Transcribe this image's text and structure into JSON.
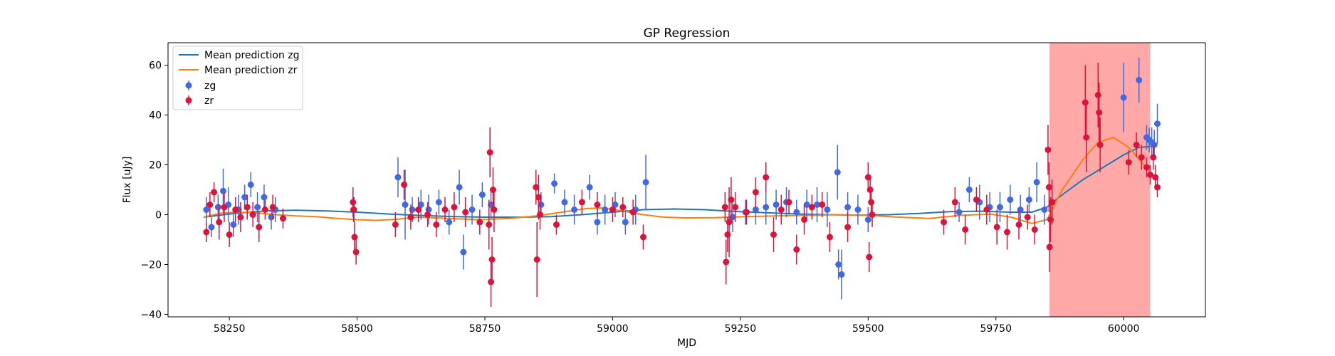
{
  "chart_data": {
    "type": "scatter",
    "title": "GP Regression",
    "xlabel": "MJD",
    "ylabel": "Flux [uJy]",
    "xlim": [
      58130,
      60160
    ],
    "ylim": [
      -41,
      69
    ],
    "xticks": [
      58250,
      58500,
      58750,
      59000,
      59250,
      59500,
      59750,
      60000
    ],
    "yticks": [
      -40,
      -20,
      0,
      20,
      40,
      60
    ],
    "grid": false,
    "legend_position": "top-left",
    "highlight_region": {
      "x_start": 59855,
      "x_end": 60052,
      "color": "#ffa8a8"
    },
    "series": [
      {
        "name": "Mean prediction zg",
        "kind": "line",
        "color": "#1f77b4",
        "x": [
          58200,
          58260,
          58320,
          58380,
          58440,
          58500,
          58560,
          58620,
          58680,
          58750,
          58820,
          58880,
          58940,
          59000,
          59060,
          59120,
          59180,
          59240,
          59300,
          59360,
          59420,
          59480,
          59540,
          59600,
          59660,
          59720,
          59780,
          59820,
          59850,
          59880,
          59920,
          59960,
          60000,
          60030,
          60060
        ],
        "y": [
          -1.0,
          0.5,
          1.5,
          1.8,
          1.5,
          1.0,
          0.3,
          -0.3,
          -0.7,
          -1.0,
          -1.0,
          -0.8,
          0.0,
          1.0,
          2.0,
          2.3,
          2.0,
          1.3,
          0.8,
          0.3,
          0.0,
          -0.2,
          0.0,
          0.5,
          1.2,
          1.4,
          1.0,
          1.0,
          3.0,
          8.0,
          14.0,
          19.0,
          24.0,
          27.0,
          27.5
        ]
      },
      {
        "name": "Mean prediction zr",
        "kind": "line",
        "color": "#ff7f0e",
        "x": [
          58200,
          58230,
          58260,
          58300,
          58340,
          58380,
          58420,
          58460,
          58500,
          58540,
          58580,
          58620,
          58680,
          58740,
          58800,
          58850,
          58900,
          58950,
          58980,
          59020,
          59060,
          59100,
          59140,
          59200,
          59260,
          59320,
          59380,
          59440,
          59500,
          59560,
          59620,
          59680,
          59740,
          59780,
          59820,
          59850,
          59880,
          59920,
          59950,
          59980,
          60010,
          60040,
          60060
        ],
        "y": [
          -1.0,
          0.5,
          1.0,
          0.8,
          0.0,
          -0.5,
          -0.8,
          -1.5,
          -2.0,
          -2.3,
          -1.8,
          -1.0,
          -1.5,
          -2.0,
          -1.5,
          -0.5,
          1.0,
          2.5,
          2.7,
          1.5,
          0.0,
          -1.0,
          -1.3,
          -1.2,
          -0.8,
          -0.5,
          -0.3,
          0.0,
          -0.3,
          -1.0,
          -1.5,
          -0.3,
          0.2,
          -1.0,
          -3.5,
          -2.0,
          10.0,
          22.0,
          29.0,
          31.0,
          27.0,
          20.0,
          15.0
        ]
      },
      {
        "name": "zg",
        "kind": "errorbar",
        "color": "#4169e1",
        "x": [
          58205,
          58215,
          58228,
          58238,
          58248,
          58258,
          58268,
          58280,
          58292,
          58305,
          58318,
          58332,
          58340,
          58494,
          58580,
          58594,
          58608,
          58625,
          58640,
          58660,
          58680,
          58700,
          58708,
          58725,
          58745,
          58762,
          58860,
          58886,
          58906,
          58925,
          58955,
          58970,
          58985,
          59005,
          59025,
          59045,
          59065,
          59235,
          59260,
          59280,
          59300,
          59320,
          59340,
          59360,
          59380,
          59400,
          59420,
          59440,
          59442,
          59448,
          59460,
          59480,
          59500,
          59678,
          59698,
          59718,
          59738,
          59758,
          59778,
          59798,
          59815,
          59830,
          59845,
          60000,
          60030,
          60045,
          60050,
          60055,
          60060,
          60066
        ],
        "y": [
          2,
          -5,
          3,
          9.5,
          4,
          -4,
          2,
          7,
          12,
          3,
          7,
          -1,
          2,
          2,
          15,
          4,
          2,
          4,
          2,
          5,
          -3,
          11,
          -15,
          2,
          8,
          4,
          4,
          12.5,
          5,
          2,
          11,
          -3,
          2,
          4,
          -3,
          2,
          13,
          -1,
          1,
          2,
          3,
          4,
          5,
          1,
          4,
          4,
          2,
          17,
          -20,
          -24,
          3,
          2,
          -2,
          1,
          10,
          5,
          3,
          3,
          6,
          2,
          6,
          13,
          2,
          47,
          54,
          31,
          30,
          29,
          28,
          36.5
        ],
        "err": [
          5,
          4,
          5,
          9,
          7,
          5,
          6,
          5,
          5,
          6,
          5,
          5,
          5,
          5,
          8,
          14,
          5,
          6,
          6,
          5,
          5,
          7,
          7,
          6,
          5,
          6,
          5,
          4,
          5,
          6,
          5,
          5,
          6,
          5,
          5,
          6,
          11,
          6,
          5,
          6,
          7,
          6,
          6,
          5,
          6,
          7,
          7,
          11,
          6,
          10,
          6,
          6,
          5,
          4,
          5,
          7,
          6,
          6,
          6,
          6,
          5,
          8,
          6,
          14,
          9,
          5,
          5,
          6,
          6,
          8
        ]
      },
      {
        "name": "zr",
        "kind": "errorbar",
        "color": "#dc143c",
        "x": [
          58205,
          58212,
          58220,
          58230,
          58240,
          58250,
          58262,
          58272,
          58285,
          58296,
          58308,
          58320,
          58335,
          58355,
          58492,
          58493,
          58495,
          58498,
          58575,
          58592,
          58605,
          58620,
          58638,
          58655,
          58672,
          58690,
          58712,
          58740,
          58758,
          58760,
          58762,
          58764,
          58766,
          58768,
          58850,
          58852,
          58855,
          58858,
          58890,
          58940,
          58970,
          59000,
          59020,
          59040,
          59060,
          59220,
          59222,
          59225,
          59228,
          59232,
          59240,
          59262,
          59280,
          59300,
          59315,
          59330,
          59345,
          59360,
          59375,
          59390,
          59410,
          59425,
          59460,
          59500,
          59502,
          59504,
          59506,
          59508,
          59648,
          59670,
          59690,
          59712,
          59732,
          59752,
          59772,
          59795,
          59812,
          59826,
          59852,
          59854,
          59855,
          59857,
          59860,
          59925,
          59927,
          59950,
          59952,
          59954,
          60010,
          60025,
          60035,
          60045,
          60052,
          60058,
          60062,
          60066
        ],
        "y": [
          -7,
          4,
          9,
          -3,
          3,
          -8,
          2,
          -1,
          3,
          0,
          -5,
          2,
          3,
          -1.5,
          5,
          2,
          -9,
          -15,
          -4,
          12,
          -1,
          2,
          0,
          -4,
          2,
          3,
          1,
          -3,
          -4,
          25,
          -27,
          -18,
          10,
          2,
          11,
          -18,
          7,
          0,
          -4,
          5,
          4,
          2,
          3,
          1,
          -9,
          3,
          -19,
          -8,
          -3,
          6,
          3,
          1,
          9,
          15,
          -8,
          2,
          5,
          -14,
          -2,
          3,
          4,
          -9,
          -5,
          15,
          -17,
          10,
          5,
          0,
          -3,
          5,
          -6,
          6,
          2,
          -5,
          -7,
          -4,
          -1,
          -6,
          26,
          11,
          -13,
          -2,
          5,
          45,
          31,
          48,
          41,
          28,
          21,
          28,
          23,
          19,
          16,
          23,
          15,
          11
        ],
        "err": [
          4,
          5,
          4,
          7,
          6,
          5,
          5,
          6,
          5,
          5,
          6,
          4,
          5,
          4,
          6,
          5,
          6,
          5,
          5,
          6,
          5,
          5,
          5,
          5,
          5,
          6,
          6,
          5,
          10,
          10,
          10,
          9,
          9,
          9,
          7,
          15,
          9,
          6,
          4,
          5,
          5,
          5,
          4,
          5,
          5,
          6,
          9,
          7,
          14,
          9,
          6,
          5,
          6,
          6,
          7,
          6,
          5,
          6,
          6,
          5,
          5,
          6,
          6,
          6,
          6,
          6,
          5,
          5,
          5,
          6,
          6,
          5,
          6,
          7,
          7,
          6,
          5,
          6,
          10,
          10,
          10,
          9,
          9,
          15,
          14,
          13,
          12,
          11,
          5,
          5,
          5,
          4,
          4,
          5,
          5,
          4
        ]
      }
    ]
  }
}
